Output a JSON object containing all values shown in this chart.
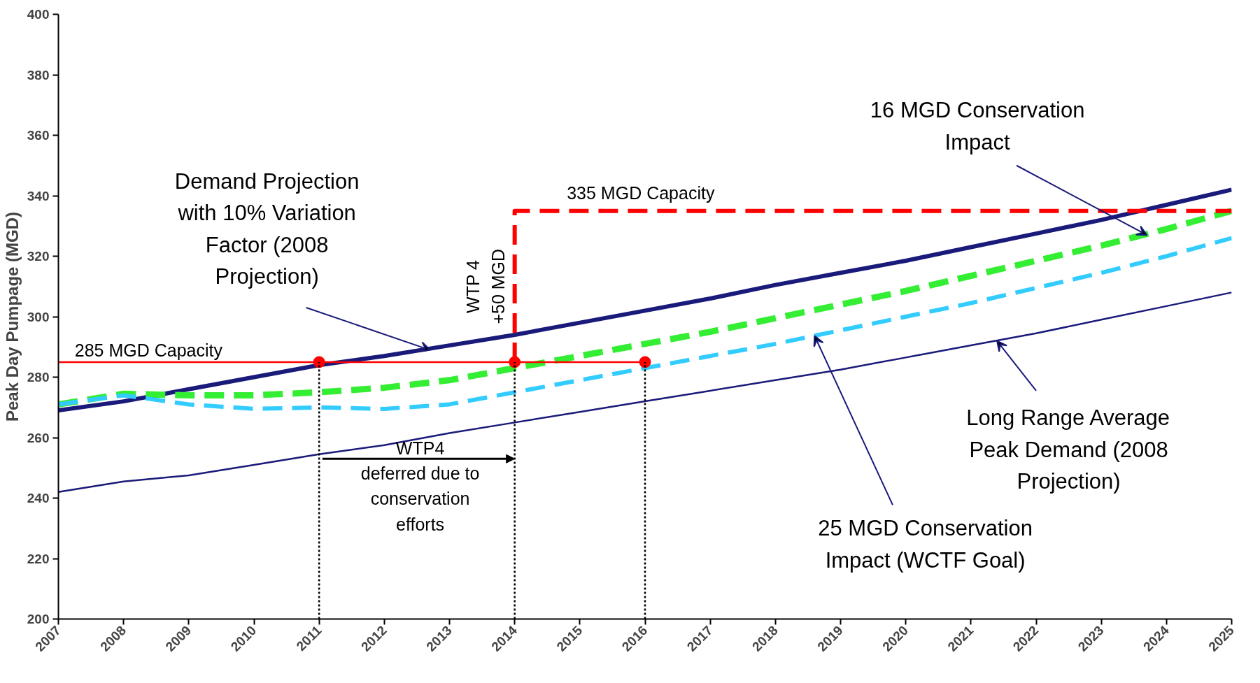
{
  "chart_data": {
    "type": "line",
    "ylabel": "Peak Day Pumpage (MGD)",
    "xlim": [
      2007,
      2025
    ],
    "xticks": [
      2007,
      2008,
      2009,
      2010,
      2011,
      2012,
      2013,
      2014,
      2015,
      2016,
      2017,
      2018,
      2019,
      2020,
      2021,
      2022,
      2023,
      2024,
      2025
    ],
    "ylim": [
      200,
      400
    ],
    "yticks": [
      200,
      220,
      240,
      260,
      280,
      300,
      320,
      340,
      360,
      380,
      400
    ],
    "grid": false,
    "x": [
      2007,
      2008,
      2009,
      2010,
      2011,
      2012,
      2013,
      2014,
      2015,
      2016,
      2017,
      2018,
      2019,
      2020,
      2021,
      2022,
      2023,
      2024,
      2025
    ],
    "series": [
      {
        "color": "#1a1a7a",
        "line_style": "solid",
        "values": [
          269,
          272,
          276,
          280,
          284,
          287,
          290.5,
          294,
          298,
          302,
          306,
          310.5,
          314.5,
          318.5,
          323,
          327.5,
          332,
          337,
          342
        ]
      },
      {
        "color": "#1a1a7a",
        "line_style": "solid",
        "values": [
          242,
          245.5,
          247.5,
          251,
          254.5,
          257.5,
          261.5,
          265,
          268.5,
          272,
          275.5,
          279,
          282.5,
          286.5,
          290.5,
          294.5,
          299,
          303.5,
          308
        ]
      },
      {
        "color": "#33ee33",
        "line_style": "dashed",
        "values": [
          271,
          274.5,
          274,
          274,
          275,
          276.5,
          279,
          283,
          287,
          291,
          295,
          299.5,
          304,
          308.5,
          313.5,
          318.5,
          323.5,
          329,
          335
        ]
      },
      {
        "color": "#33ccff",
        "line_style": "dashed",
        "values": [
          271,
          274,
          271,
          269.5,
          270,
          269.5,
          271,
          275,
          279,
          283,
          287,
          291,
          295.5,
          300,
          304.5,
          309.5,
          314.5,
          320,
          326
        ]
      },
      {
        "color": "#ff0000",
        "line_style": "solid",
        "x": [
          2007,
          2016
        ],
        "values": [
          285,
          285
        ]
      },
      {
        "color": "#ff0000",
        "line_style": "dashed",
        "x": [
          2014,
          2014,
          2025
        ],
        "values": [
          285,
          335,
          335
        ]
      },
      {
        "type": "scatter",
        "marker": "circle",
        "color": "#ff0000",
        "x": [
          2011,
          2014,
          2016
        ],
        "values": [
          285,
          285,
          285
        ]
      },
      {
        "color": "#000000",
        "line_style": "dotted",
        "x": [
          2011,
          2011
        ],
        "values": [
          200,
          285
        ]
      },
      {
        "color": "#000000",
        "line_style": "dotted",
        "x": [
          2014,
          2014
        ],
        "values": [
          200,
          285
        ]
      },
      {
        "color": "#000000",
        "line_style": "dotted",
        "x": [
          2016,
          2016
        ],
        "values": [
          200,
          285
        ]
      }
    ],
    "annotations": [
      {
        "text": "Demand Projection\nwith 10% Variation\nFactor (2008\nProjection)",
        "x": 2012.7,
        "y": 289
      },
      {
        "text": "16 MGD Conservation\nImpact",
        "x": 2023.7,
        "y": 327
      },
      {
        "text": "Long Range Average\nPeak Demand (2008\nProjection)",
        "x": 2021.4,
        "y": 292
      },
      {
        "text": "25 MGD Conservation\nImpact (WCTF Goal)",
        "x": 2018.6,
        "y": 293.7
      },
      "285 MGD Capacity",
      "335 MGD Capacity",
      "WTP 4\n+50 MGD",
      {
        "text": "WTP4\ndeferred due to\nconservation\nefforts",
        "x": 2014,
        "y": 253
      }
    ]
  }
}
